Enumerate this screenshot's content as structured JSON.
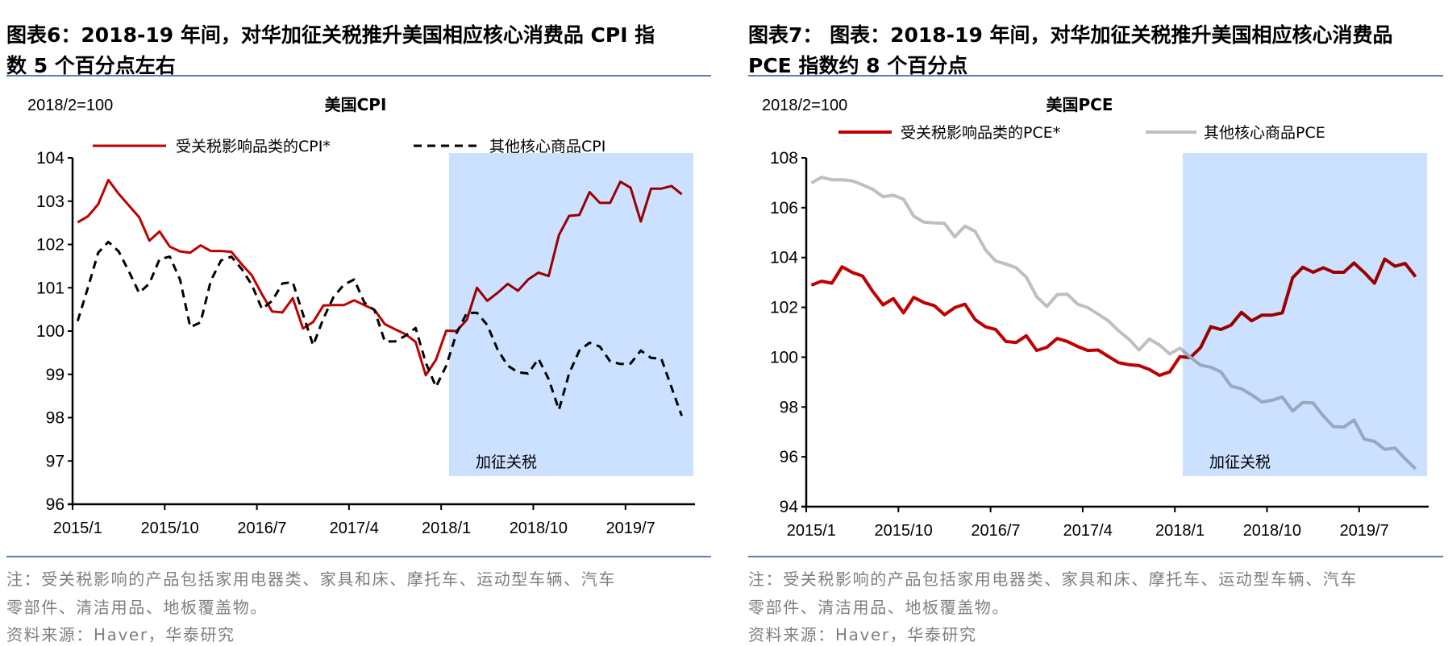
{
  "left": {
    "title_line1": "图表6：2018-19 年间，对华加征关税推升美国相应核心消费品 CPI 指",
    "title_line2": "数 5 个百分点左右",
    "note_line1": "注：受关税影响的产品包括家用电器类、家具和床、摩托车、运动型车辆、汽车",
    "note_line2": "零部件、清洁用品、地板覆盖物。",
    "source": "资料来源：Haver，华泰研究"
  },
  "right": {
    "title_line1": "图表7： 图表：2018-19 年间，对华加征关税推升美国相应核心消费品",
    "title_line2": "PCE 指数约 8 个百分点",
    "note_line1": "注：受关税影响的产品包括家用电器类、家具和床、摩托车、运动型车辆、汽车",
    "note_line2": "零部件、清洁用品、地板覆盖物。",
    "source": "资料来源：Haver，华泰研究"
  },
  "colors": {
    "tariff_series": "#C00000",
    "other_cpi": "#000000",
    "other_pce": "#BFBFBF",
    "tariff_zone": "#CCE0FF",
    "rule": "#5B7DB1"
  },
  "chart_data": [
    {
      "type": "line",
      "title": "美国CPI",
      "ylabel": "2018/2=100",
      "ylim": [
        96,
        104
      ],
      "yticks": [
        96,
        97,
        98,
        99,
        100,
        101,
        102,
        103,
        104
      ],
      "xtick_labels": [
        "2015/1",
        "2015/10",
        "2016/7",
        "2017/4",
        "2018/1",
        "2018/10",
        "2019/7"
      ],
      "grid": false,
      "legend": "top",
      "annotation": {
        "text": "加征关税",
        "from": "2018/1",
        "to": "2019/12"
      },
      "x": [
        "2015/1",
        "2015/2",
        "2015/3",
        "2015/4",
        "2015/5",
        "2015/6",
        "2015/7",
        "2015/8",
        "2015/9",
        "2015/10",
        "2015/11",
        "2015/12",
        "2016/1",
        "2016/2",
        "2016/3",
        "2016/4",
        "2016/5",
        "2016/6",
        "2016/7",
        "2016/8",
        "2016/9",
        "2016/10",
        "2016/11",
        "2016/12",
        "2017/1",
        "2017/2",
        "2017/3",
        "2017/4",
        "2017/5",
        "2017/6",
        "2017/7",
        "2017/8",
        "2017/9",
        "2017/10",
        "2017/11",
        "2017/12",
        "2018/1",
        "2018/2",
        "2018/3",
        "2018/4",
        "2018/5",
        "2018/6",
        "2018/7",
        "2018/8",
        "2018/9",
        "2018/10",
        "2018/11",
        "2018/12",
        "2019/1",
        "2019/2",
        "2019/3",
        "2019/4",
        "2019/5",
        "2019/6",
        "2019/7",
        "2019/8",
        "2019/9",
        "2019/10",
        "2019/11",
        "2019/12"
      ],
      "series": [
        {
          "name": "受关税影响品类的CPI*",
          "style": "solid",
          "color": "#C00000",
          "values": [
            102.51,
            102.65,
            102.93,
            103.49,
            103.17,
            102.9,
            102.63,
            102.09,
            102.3,
            101.95,
            101.84,
            101.81,
            101.98,
            101.85,
            101.85,
            101.83,
            101.55,
            101.29,
            100.85,
            100.45,
            100.43,
            100.76,
            100.06,
            100.21,
            100.59,
            100.6,
            100.6,
            100.71,
            100.6,
            100.49,
            100.16,
            100.04,
            99.93,
            99.75,
            98.98,
            99.34,
            100.01,
            100.0,
            100.26,
            101.0,
            100.7,
            100.88,
            101.09,
            100.93,
            101.19,
            101.35,
            101.27,
            102.22,
            102.66,
            102.68,
            103.21,
            102.96,
            102.96,
            103.45,
            103.31,
            102.53,
            103.29,
            103.29,
            103.35,
            103.16
          ]
        },
        {
          "name": "其他核心商品CPI",
          "style": "dashed",
          "color": "#000000",
          "values": [
            100.23,
            101.0,
            101.81,
            102.06,
            101.84,
            101.38,
            100.88,
            101.1,
            101.66,
            101.72,
            101.19,
            100.09,
            100.2,
            101.16,
            101.63,
            101.72,
            101.44,
            101.07,
            100.51,
            100.7,
            101.1,
            101.13,
            100.39,
            99.67,
            100.29,
            100.79,
            101.07,
            101.19,
            100.66,
            100.48,
            99.76,
            99.76,
            99.89,
            100.07,
            99.27,
            98.71,
            99.2,
            99.95,
            100.42,
            100.42,
            100.14,
            99.58,
            99.2,
            99.05,
            99.02,
            99.36,
            98.89,
            98.18,
            99.02,
            99.55,
            99.73,
            99.64,
            99.3,
            99.24,
            99.25,
            99.55,
            99.38,
            99.36,
            98.7,
            98.04
          ]
        }
      ]
    },
    {
      "type": "line",
      "title": "美国PCE",
      "ylabel": "2018/2=100",
      "ylim": [
        94,
        108
      ],
      "yticks": [
        94,
        96,
        98,
        100,
        102,
        104,
        106,
        108
      ],
      "xtick_labels": [
        "2015/1",
        "2015/10",
        "2016/7",
        "2017/4",
        "2018/1",
        "2018/10",
        "2019/7"
      ],
      "grid": false,
      "legend": "top",
      "annotation": {
        "text": "加征关税",
        "from": "2018/1",
        "to": "2019/12"
      },
      "x": [
        "2015/1",
        "2015/2",
        "2015/3",
        "2015/4",
        "2015/5",
        "2015/6",
        "2015/7",
        "2015/8",
        "2015/9",
        "2015/10",
        "2015/11",
        "2015/12",
        "2016/1",
        "2016/2",
        "2016/3",
        "2016/4",
        "2016/5",
        "2016/6",
        "2016/7",
        "2016/8",
        "2016/9",
        "2016/10",
        "2016/11",
        "2016/12",
        "2017/1",
        "2017/2",
        "2017/3",
        "2017/4",
        "2017/5",
        "2017/6",
        "2017/7",
        "2017/8",
        "2017/9",
        "2017/10",
        "2017/11",
        "2017/12",
        "2018/1",
        "2018/2",
        "2018/3",
        "2018/4",
        "2018/5",
        "2018/6",
        "2018/7",
        "2018/8",
        "2018/9",
        "2018/10",
        "2018/11",
        "2018/12",
        "2019/1",
        "2019/2",
        "2019/3",
        "2019/4",
        "2019/5",
        "2019/6",
        "2019/7",
        "2019/8",
        "2019/9",
        "2019/10",
        "2019/11",
        "2019/12"
      ],
      "series": [
        {
          "name": "受关税影响品类的PCE*",
          "style": "solid",
          "color": "#C00000",
          "values": [
            102.89,
            103.05,
            102.97,
            103.63,
            103.4,
            103.26,
            102.64,
            102.1,
            102.35,
            101.78,
            102.4,
            102.19,
            102.07,
            101.7,
            101.99,
            102.13,
            101.51,
            101.22,
            101.11,
            100.63,
            100.59,
            100.86,
            100.27,
            100.4,
            100.75,
            100.63,
            100.43,
            100.27,
            100.29,
            100.03,
            99.78,
            99.7,
            99.66,
            99.51,
            99.27,
            99.41,
            100.02,
            99.98,
            100.38,
            101.22,
            101.11,
            101.29,
            101.8,
            101.46,
            101.69,
            101.69,
            101.78,
            103.19,
            103.61,
            103.41,
            103.59,
            103.41,
            103.41,
            103.78,
            103.4,
            102.97,
            103.94,
            103.65,
            103.76,
            103.23
          ]
        },
        {
          "name": "其他核心商品PCE",
          "style": "solid",
          "color": "#BFBFBF",
          "values": [
            106.99,
            107.22,
            107.12,
            107.12,
            107.08,
            106.92,
            106.74,
            106.44,
            106.5,
            106.34,
            105.66,
            105.42,
            105.39,
            105.37,
            104.83,
            105.26,
            105.05,
            104.31,
            103.86,
            103.74,
            103.59,
            103.21,
            102.43,
            102.03,
            102.51,
            102.53,
            102.13,
            101.99,
            101.73,
            101.46,
            101.06,
            100.73,
            100.29,
            100.73,
            100.49,
            100.13,
            100.36,
            100.0,
            99.68,
            99.6,
            99.41,
            98.84,
            98.73,
            98.49,
            98.2,
            98.27,
            98.4,
            97.84,
            98.18,
            98.16,
            97.64,
            97.21,
            97.19,
            97.48,
            96.71,
            96.62,
            96.3,
            96.35,
            95.92,
            95.52
          ]
        }
      ]
    }
  ]
}
